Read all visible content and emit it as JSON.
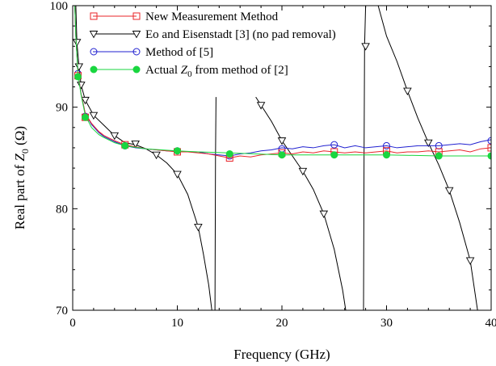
{
  "chart_data": {
    "type": "line",
    "title": "",
    "xlabel": "Frequency (GHz)",
    "ylabel": "Real part of Z0 (Ω)",
    "ylabel_parts": {
      "prefix": "Real part of ",
      "symbol": "Z",
      "subscript": "0",
      "suffix": " (Ω)"
    },
    "xlim": [
      0,
      40
    ],
    "ylim": [
      70,
      100
    ],
    "x_ticks": [
      0,
      10,
      20,
      30,
      40
    ],
    "y_ticks": [
      70,
      80,
      90,
      100
    ],
    "grid": false,
    "legend_position": "top-left",
    "series": [
      {
        "name": "New Measurement Method",
        "legend": {
          "prefix": "New Measurement Method"
        },
        "color": "#e8252a",
        "marker": "square",
        "line": [
          [
            0.2,
            100
          ],
          [
            0.3,
            97
          ],
          [
            0.5,
            93.5
          ],
          [
            0.8,
            91.3
          ],
          [
            1.2,
            89.4
          ],
          [
            1.8,
            88.4
          ],
          [
            2.5,
            87.6
          ],
          [
            3,
            87.2
          ],
          [
            4,
            86.7
          ],
          [
            5,
            86.3
          ],
          [
            6,
            86.1
          ],
          [
            7,
            85.9
          ],
          [
            8,
            85.8
          ],
          [
            9,
            85.7
          ],
          [
            10,
            85.6
          ],
          [
            11,
            85.6
          ],
          [
            12,
            85.5
          ],
          [
            13,
            85.4
          ],
          [
            14,
            85.2
          ],
          [
            15,
            85.0
          ],
          [
            16,
            85.2
          ],
          [
            17,
            85.1
          ],
          [
            18,
            85.3
          ],
          [
            19,
            85.4
          ],
          [
            20,
            85.5
          ],
          [
            21,
            85.4
          ],
          [
            22,
            85.6
          ],
          [
            23,
            85.5
          ],
          [
            24,
            85.7
          ],
          [
            25,
            85.6
          ],
          [
            26,
            85.5
          ],
          [
            27,
            85.6
          ],
          [
            28,
            85.5
          ],
          [
            29,
            85.6
          ],
          [
            30,
            85.7
          ],
          [
            31,
            85.5
          ],
          [
            32,
            85.6
          ],
          [
            33,
            85.6
          ],
          [
            34,
            85.7
          ],
          [
            35,
            85.6
          ],
          [
            36,
            85.7
          ],
          [
            37,
            85.8
          ],
          [
            38,
            85.6
          ],
          [
            39,
            85.9
          ],
          [
            40,
            86.0
          ]
        ],
        "markers": [
          [
            0.5,
            93.1
          ],
          [
            1.2,
            89.0
          ],
          [
            5,
            86.3
          ],
          [
            10,
            85.6
          ],
          [
            15,
            85.0
          ],
          [
            20,
            85.5
          ],
          [
            25,
            85.6
          ],
          [
            30,
            85.7
          ],
          [
            35,
            85.6
          ],
          [
            40,
            86.0
          ]
        ]
      },
      {
        "name": "Eo and Eisenstadt [3] (no pad removal)",
        "legend": {
          "prefix": "Eo and Eisenstadt [3] (no pad removal)"
        },
        "color": "#000000",
        "marker": "triangle-down",
        "segments": [
          [
            [
              0.3,
              100
            ],
            [
              0.4,
              96.4
            ],
            [
              0.6,
              94
            ],
            [
              0.8,
              92.2
            ],
            [
              1.2,
              90.7
            ],
            [
              2,
              89.2
            ],
            [
              3,
              88.2
            ],
            [
              4,
              87.2
            ],
            [
              5,
              86.5
            ],
            [
              6,
              86.3
            ],
            [
              7,
              85.9
            ],
            [
              8,
              85.3
            ],
            [
              9,
              84.5
            ],
            [
              10,
              83.4
            ],
            [
              11,
              81.4
            ],
            [
              12,
              78.2
            ],
            [
              12.5,
              75.5
            ],
            [
              13,
              72.5
            ],
            [
              13.3,
              70
            ]
          ],
          [
            [
              13.6,
              70
            ],
            [
              13.65,
              85
            ],
            [
              13.7,
              91
            ]
          ],
          [
            [
              17.5,
              91.0
            ],
            [
              18,
              90.2
            ],
            [
              19,
              88.6
            ],
            [
              20,
              86.7
            ],
            [
              21,
              85.2
            ],
            [
              22,
              83.7
            ],
            [
              23,
              81.9
            ],
            [
              24,
              79.5
            ],
            [
              25,
              76.0
            ],
            [
              25.8,
              72.0
            ],
            [
              26.1,
              70
            ]
          ],
          [
            [
              27.8,
              70
            ],
            [
              27.85,
              85
            ],
            [
              27.9,
              96.0
            ],
            [
              28.0,
              100
            ]
          ],
          [
            [
              29.2,
              100
            ],
            [
              30,
              97.0
            ],
            [
              31,
              94.5
            ],
            [
              32,
              91.6
            ],
            [
              33,
              88.9
            ],
            [
              34,
              86.5
            ],
            [
              35,
              84.3
            ],
            [
              36,
              81.8
            ],
            [
              37,
              78.6
            ],
            [
              38,
              74.9
            ],
            [
              38.7,
              70
            ]
          ]
        ],
        "markers": [
          [
            0.4,
            96.4
          ],
          [
            0.6,
            94
          ],
          [
            0.8,
            92.2
          ],
          [
            1.2,
            90.7
          ],
          [
            2,
            89.2
          ],
          [
            4,
            87.2
          ],
          [
            6,
            86.4
          ],
          [
            8,
            85.3
          ],
          [
            10,
            83.4
          ],
          [
            12,
            78.2
          ],
          [
            18,
            90.2
          ],
          [
            20,
            86.7
          ],
          [
            22,
            83.7
          ],
          [
            24,
            79.5
          ],
          [
            28,
            96.0
          ],
          [
            32,
            91.6
          ],
          [
            34,
            86.5
          ],
          [
            36,
            81.8
          ],
          [
            38,
            74.9
          ]
        ]
      },
      {
        "name": "Method of [5]",
        "legend": {
          "prefix": "Method of [5]"
        },
        "color": "#2020d0",
        "marker": "circle-open",
        "line": [
          [
            0.2,
            100
          ],
          [
            0.3,
            97
          ],
          [
            0.5,
            93.6
          ],
          [
            0.8,
            91.3
          ],
          [
            1.2,
            89.4
          ],
          [
            1.8,
            88.3
          ],
          [
            2.5,
            87.5
          ],
          [
            3,
            87.1
          ],
          [
            4,
            86.6
          ],
          [
            5,
            86.2
          ],
          [
            6,
            86.0
          ],
          [
            7,
            85.9
          ],
          [
            8,
            85.8
          ],
          [
            9,
            85.7
          ],
          [
            10,
            85.7
          ],
          [
            11,
            85.6
          ],
          [
            12,
            85.6
          ],
          [
            13,
            85.4
          ],
          [
            14,
            85.3
          ],
          [
            15,
            85.2
          ],
          [
            16,
            85.4
          ],
          [
            17,
            85.5
          ],
          [
            18,
            85.7
          ],
          [
            19,
            85.8
          ],
          [
            20,
            86.0
          ],
          [
            21,
            85.9
          ],
          [
            22,
            86.1
          ],
          [
            23,
            86.0
          ],
          [
            24,
            86.2
          ],
          [
            25,
            86.3
          ],
          [
            26,
            86.0
          ],
          [
            27,
            86.2
          ],
          [
            28,
            86.0
          ],
          [
            29,
            86.1
          ],
          [
            30,
            86.2
          ],
          [
            31,
            86.0
          ],
          [
            32,
            86.1
          ],
          [
            33,
            86.2
          ],
          [
            34,
            86.2
          ],
          [
            35,
            86.2
          ],
          [
            36,
            86.3
          ],
          [
            37,
            86.4
          ],
          [
            38,
            86.3
          ],
          [
            39,
            86.6
          ],
          [
            40,
            86.8
          ]
        ],
        "markers": [
          [
            0.5,
            93.3
          ],
          [
            1.2,
            89.1
          ],
          [
            5,
            86.2
          ],
          [
            10,
            85.7
          ],
          [
            15,
            85.2
          ],
          [
            20,
            85.9
          ],
          [
            25,
            86.3
          ],
          [
            30,
            86.2
          ],
          [
            35,
            86.2
          ],
          [
            40,
            86.7
          ]
        ]
      },
      {
        "name": "Actual Z0 from method of [2]",
        "legend": {
          "prefix": "Actual ",
          "symbol": "Z",
          "subscript": "0",
          "suffix": " from method of [2]"
        },
        "color": "#19d63f",
        "marker": "circle-filled",
        "line": [
          [
            0.2,
            100
          ],
          [
            0.3,
            97
          ],
          [
            0.5,
            93.3
          ],
          [
            0.8,
            91.2
          ],
          [
            1.2,
            89.2
          ],
          [
            1.8,
            88.0
          ],
          [
            2.5,
            87.3
          ],
          [
            3,
            87.0
          ],
          [
            4,
            86.5
          ],
          [
            5,
            86.2
          ],
          [
            7,
            85.9
          ],
          [
            10,
            85.7
          ],
          [
            12,
            85.6
          ],
          [
            15,
            85.5
          ],
          [
            20,
            85.3
          ],
          [
            25,
            85.3
          ],
          [
            30,
            85.3
          ],
          [
            35,
            85.2
          ],
          [
            40,
            85.2
          ]
        ],
        "markers": [
          [
            0.5,
            93.0
          ],
          [
            1.2,
            89.0
          ],
          [
            5,
            86.2
          ],
          [
            10,
            85.7
          ],
          [
            15,
            85.4
          ],
          [
            20,
            85.3
          ],
          [
            25,
            85.3
          ],
          [
            30,
            85.3
          ],
          [
            35,
            85.2
          ],
          [
            40,
            85.2
          ]
        ]
      }
    ]
  }
}
